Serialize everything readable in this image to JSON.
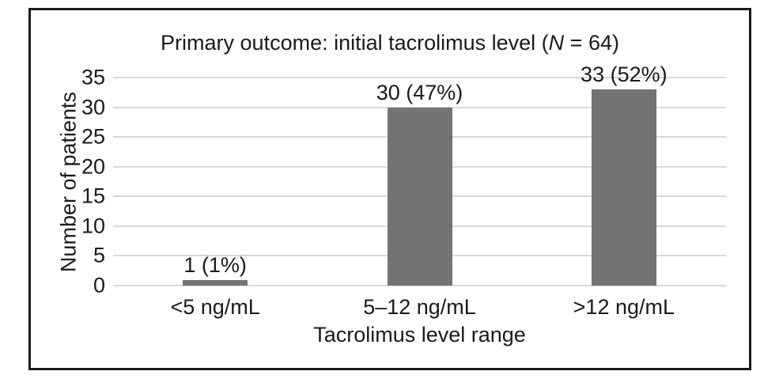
{
  "title": {
    "prefix": "Primary outcome: initial tacrolimus level (",
    "n_symbol": "N",
    "suffix": " = 64)"
  },
  "chart_data": {
    "type": "bar",
    "title": "Primary outcome: initial tacrolimus level (N = 64)",
    "total_n": 64,
    "categories": [
      "<5 ng/mL",
      "5–12 ng/mL",
      ">12 ng/mL"
    ],
    "values": [
      1,
      30,
      33
    ],
    "percentages": [
      1,
      47,
      52
    ],
    "bar_labels": [
      "1 (1%)",
      "30 (47%)",
      "33 (52%)"
    ],
    "xlabel": "Tacrolimus level range",
    "ylabel": "Number of patients",
    "ylim": [
      0,
      35
    ],
    "ytick_step": 5,
    "yticks": [
      0,
      5,
      10,
      15,
      20,
      25,
      30,
      35
    ],
    "grid": "horizontal",
    "legend_position": "none",
    "bar_color": "#737373",
    "gridline_color": "#d9d9d9",
    "text_color": "#1a1a1a",
    "frame_color": "#1a1a1a"
  }
}
